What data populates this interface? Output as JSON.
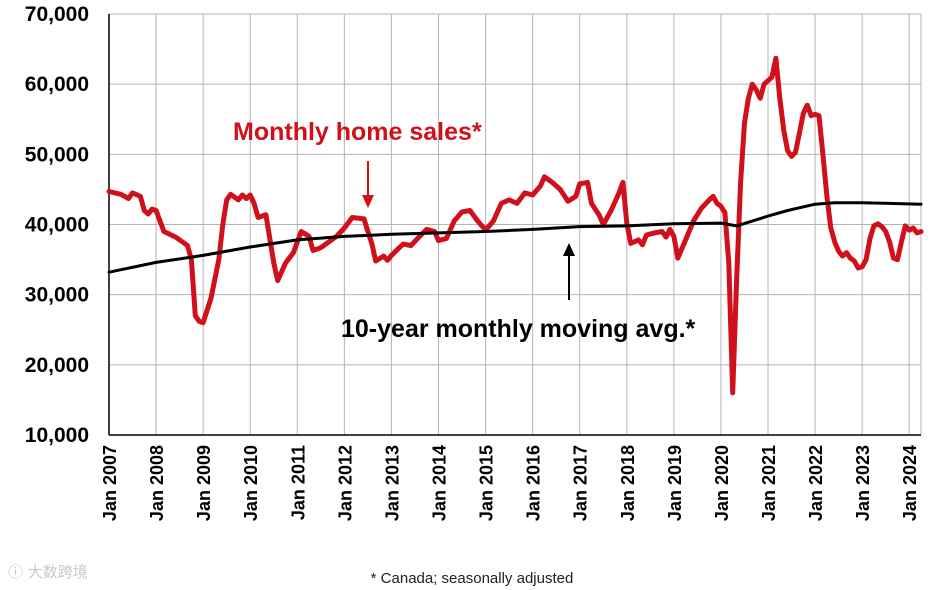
{
  "chart_data": {
    "type": "line",
    "title": "",
    "xlabel": "",
    "ylabel": "",
    "ylim": [
      10000,
      70000
    ],
    "xlim": [
      "2007-01",
      "2024-04"
    ],
    "grid": true,
    "y_ticks": [
      "10,000",
      "20,000",
      "30,000",
      "40,000",
      "50,000",
      "60,000",
      "70,000"
    ],
    "x_ticks": [
      "Jan 2007",
      "Jan 2008",
      "Jan 2009",
      "Jan 2010",
      "Jan 2011",
      "Jan 2012",
      "Jan 2013",
      "Jan 2014",
      "Jan 2015",
      "Jan 2016",
      "Jan 2017",
      "Jan 2018",
      "Jan 2019",
      "Jan 2020",
      "Jan 2021",
      "Jan 2022",
      "Jan 2023",
      "Jan 2024"
    ],
    "series": [
      {
        "name": "Monthly home sales*",
        "color": "#d0101b",
        "points": [
          [
            "2007-01",
            44700
          ],
          [
            "2007-04",
            44300
          ],
          [
            "2007-06",
            43700
          ],
          [
            "2007-07",
            44500
          ],
          [
            "2007-09",
            44000
          ],
          [
            "2007-10",
            42000
          ],
          [
            "2007-11",
            41500
          ],
          [
            "2007-12",
            42200
          ],
          [
            "2008-01",
            42000
          ],
          [
            "2008-03",
            39000
          ],
          [
            "2008-06",
            38200
          ],
          [
            "2008-09",
            37000
          ],
          [
            "2008-10",
            35000
          ],
          [
            "2008-11",
            27000
          ],
          [
            "2008-12",
            26200
          ],
          [
            "2009-01",
            26000
          ],
          [
            "2009-03",
            29500
          ],
          [
            "2009-05",
            35000
          ],
          [
            "2009-06",
            40000
          ],
          [
            "2009-07",
            43500
          ],
          [
            "2009-08",
            44300
          ],
          [
            "2009-10",
            43500
          ],
          [
            "2009-11",
            44200
          ],
          [
            "2009-12",
            43700
          ],
          [
            "2010-01",
            44200
          ],
          [
            "2010-02",
            43000
          ],
          [
            "2010-03",
            41000
          ],
          [
            "2010-05",
            41400
          ],
          [
            "2010-06",
            38000
          ],
          [
            "2010-07",
            34500
          ],
          [
            "2010-08",
            32000
          ],
          [
            "2010-10",
            34500
          ],
          [
            "2010-12",
            36000
          ],
          [
            "2011-01",
            37500
          ],
          [
            "2011-02",
            39000
          ],
          [
            "2011-04",
            38300
          ],
          [
            "2011-05",
            36300
          ],
          [
            "2011-07",
            36700
          ],
          [
            "2011-09",
            37500
          ],
          [
            "2011-11",
            38300
          ],
          [
            "2012-01",
            39500
          ],
          [
            "2012-03",
            41000
          ],
          [
            "2012-06",
            40800
          ],
          [
            "2012-07",
            39000
          ],
          [
            "2012-08",
            37300
          ],
          [
            "2012-09",
            34800
          ],
          [
            "2012-11",
            35500
          ],
          [
            "2012-12",
            34900
          ],
          [
            "2013-01",
            35600
          ],
          [
            "2013-03",
            36700
          ],
          [
            "2013-04",
            37200
          ],
          [
            "2013-06",
            37000
          ],
          [
            "2013-08",
            38200
          ],
          [
            "2013-10",
            39300
          ],
          [
            "2013-12",
            39000
          ],
          [
            "2014-01",
            37700
          ],
          [
            "2014-03",
            38000
          ],
          [
            "2014-05",
            40500
          ],
          [
            "2014-07",
            41800
          ],
          [
            "2014-09",
            42000
          ],
          [
            "2014-11",
            40500
          ],
          [
            "2015-01",
            39200
          ],
          [
            "2015-03",
            40500
          ],
          [
            "2015-05",
            43000
          ],
          [
            "2015-07",
            43500
          ],
          [
            "2015-09",
            43000
          ],
          [
            "2015-11",
            44500
          ],
          [
            "2016-01",
            44200
          ],
          [
            "2016-03",
            45500
          ],
          [
            "2016-04",
            46800
          ],
          [
            "2016-06",
            46000
          ],
          [
            "2016-08",
            45000
          ],
          [
            "2016-10",
            43300
          ],
          [
            "2016-12",
            44000
          ],
          [
            "2017-01",
            45800
          ],
          [
            "2017-03",
            46000
          ],
          [
            "2017-04",
            43000
          ],
          [
            "2017-06",
            41300
          ],
          [
            "2017-07",
            40000
          ],
          [
            "2017-08",
            41000
          ],
          [
            "2017-09",
            42000
          ],
          [
            "2017-11",
            44500
          ],
          [
            "2017-12",
            46000
          ],
          [
            "2018-01",
            40200
          ],
          [
            "2018-02",
            37300
          ],
          [
            "2018-04",
            37800
          ],
          [
            "2018-05",
            37100
          ],
          [
            "2018-06",
            38500
          ],
          [
            "2018-08",
            38800
          ],
          [
            "2018-10",
            39000
          ],
          [
            "2018-11",
            38200
          ],
          [
            "2018-12",
            39300
          ],
          [
            "2019-01",
            38300
          ],
          [
            "2019-02",
            35200
          ],
          [
            "2019-04",
            37800
          ],
          [
            "2019-06",
            40500
          ],
          [
            "2019-08",
            42300
          ],
          [
            "2019-10",
            43500
          ],
          [
            "2019-11",
            44000
          ],
          [
            "2019-12",
            43000
          ],
          [
            "2020-01",
            42600
          ],
          [
            "2020-02",
            41700
          ],
          [
            "2020-03",
            34500
          ],
          [
            "2020-04",
            16000
          ],
          [
            "2020-05",
            32000
          ],
          [
            "2020-06",
            46000
          ],
          [
            "2020-07",
            54500
          ],
          [
            "2020-08",
            58000
          ],
          [
            "2020-09",
            60000
          ],
          [
            "2020-10",
            59200
          ],
          [
            "2020-11",
            58000
          ],
          [
            "2020-12",
            60000
          ],
          [
            "2021-01",
            60500
          ],
          [
            "2021-02",
            61000
          ],
          [
            "2021-03",
            63700
          ],
          [
            "2021-04",
            58000
          ],
          [
            "2021-05",
            53500
          ],
          [
            "2021-06",
            50500
          ],
          [
            "2021-07",
            49700
          ],
          [
            "2021-08",
            50300
          ],
          [
            "2021-09",
            53000
          ],
          [
            "2021-10",
            55800
          ],
          [
            "2021-11",
            57000
          ],
          [
            "2021-12",
            55500
          ],
          [
            "2022-01",
            55700
          ],
          [
            "2022-02",
            55500
          ],
          [
            "2022-03",
            50000
          ],
          [
            "2022-04",
            44000
          ],
          [
            "2022-05",
            39500
          ],
          [
            "2022-06",
            37500
          ],
          [
            "2022-07",
            36200
          ],
          [
            "2022-08",
            35500
          ],
          [
            "2022-09",
            36000
          ],
          [
            "2022-10",
            35200
          ],
          [
            "2022-11",
            34800
          ],
          [
            "2022-12",
            33800
          ],
          [
            "2023-01",
            34000
          ],
          [
            "2023-02",
            35000
          ],
          [
            "2023-03",
            38000
          ],
          [
            "2023-04",
            39800
          ],
          [
            "2023-05",
            40100
          ],
          [
            "2023-06",
            39700
          ],
          [
            "2023-07",
            39000
          ],
          [
            "2023-08",
            37500
          ],
          [
            "2023-09",
            35200
          ],
          [
            "2023-10",
            35000
          ],
          [
            "2023-11",
            37500
          ],
          [
            "2023-12",
            39800
          ],
          [
            "2024-01",
            39200
          ],
          [
            "2024-02",
            39500
          ],
          [
            "2024-03",
            38800
          ],
          [
            "2024-04",
            39000
          ]
        ]
      },
      {
        "name": "10-year monthly moving avg.*",
        "color": "#000000",
        "points": [
          [
            "2007-01",
            33200
          ],
          [
            "2008-01",
            34600
          ],
          [
            "2009-01",
            35600
          ],
          [
            "2010-01",
            36800
          ],
          [
            "2011-01",
            37800
          ],
          [
            "2012-01",
            38300
          ],
          [
            "2013-01",
            38600
          ],
          [
            "2014-01",
            38800
          ],
          [
            "2015-01",
            39000
          ],
          [
            "2016-01",
            39300
          ],
          [
            "2017-01",
            39700
          ],
          [
            "2018-01",
            39800
          ],
          [
            "2019-01",
            40100
          ],
          [
            "2020-01",
            40200
          ],
          [
            "2020-05",
            39800
          ],
          [
            "2021-01",
            41200
          ],
          [
            "2021-06",
            42000
          ],
          [
            "2022-01",
            42900
          ],
          [
            "2022-06",
            43100
          ],
          [
            "2023-01",
            43100
          ],
          [
            "2024-04",
            42900
          ]
        ]
      }
    ],
    "annotations": [
      {
        "text": "Monthly home sales*",
        "color": "#d0101b"
      },
      {
        "text": "10-year monthly moving avg.*",
        "color": "#000000"
      }
    ]
  },
  "footnote": "* Canada; seasonally adjusted",
  "watermark": "大数跨境"
}
